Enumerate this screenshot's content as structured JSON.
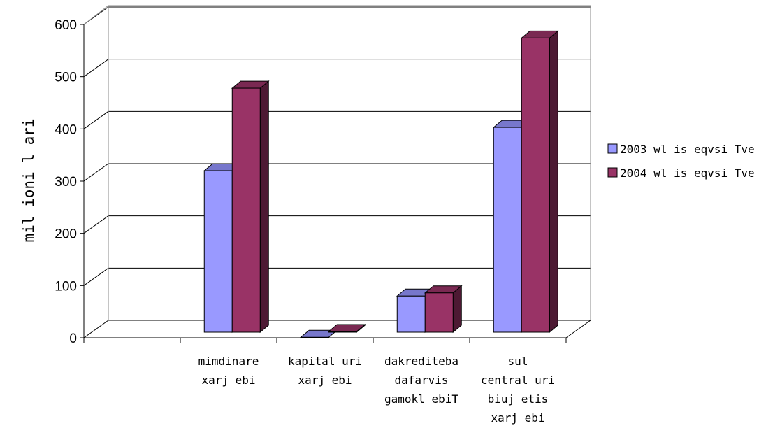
{
  "chart_data": {
    "type": "bar",
    "ylabel": "mil ioni l ari",
    "ylim": [
      0,
      600
    ],
    "yticks": [
      0,
      100,
      200,
      300,
      400,
      500,
      600
    ],
    "categories": [
      [
        ""
      ],
      [
        "mimdinare",
        "xarj ebi"
      ],
      [
        "kapital uri",
        "xarj ebi"
      ],
      [
        "dakrediteba",
        "dafarvis",
        "gamokl ebiT"
      ],
      [
        "sul",
        "central uri",
        "biuj etis",
        "xarj ebi"
      ]
    ],
    "series": [
      {
        "name": "2003 wl is eqvsi Tve",
        "values": [
          0,
          320,
          1,
          80,
          403
        ]
      },
      {
        "name": "2004 wl is eqvsi Tve",
        "values": [
          0,
          478,
          12,
          86,
          574
        ]
      }
    ],
    "grid": true,
    "legend_position": "right",
    "colors": {
      "series_front": [
        "#9999ff",
        "#993366"
      ],
      "series_top": [
        "#7777cc",
        "#7a2952"
      ],
      "series_side": [
        "#52527a",
        "#4d1933"
      ],
      "grid": "#000000"
    }
  }
}
